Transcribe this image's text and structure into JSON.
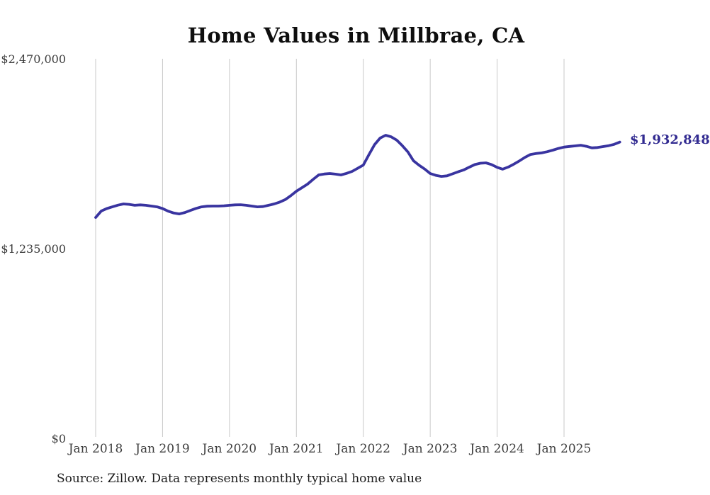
{
  "chart_data": {
    "type": "line",
    "title": "Home Values in Millbrae, CA",
    "source_note": "Source: Zillow. Data represents monthly typical home value",
    "end_label": "$1,932,848",
    "xlabel": "",
    "ylabel": "",
    "ylim": [
      0,
      2470000
    ],
    "grid": "vertical-only",
    "legend": "none",
    "y_ticks": [
      {
        "label": "$2,470,000",
        "value": 2470000
      },
      {
        "label": "$1,235,000",
        "value": 1235000
      },
      {
        "label": "$0",
        "value": 0
      }
    ],
    "x_ticks": [
      {
        "label": "Jan 2018",
        "month": 0
      },
      {
        "label": "Jan 2019",
        "month": 12
      },
      {
        "label": "Jan 2020",
        "month": 24
      },
      {
        "label": "Jan 2021",
        "month": 36
      },
      {
        "label": "Jan 2022",
        "month": 48
      },
      {
        "label": "Jan 2023",
        "month": 60
      },
      {
        "label": "Jan 2024",
        "month": 72
      },
      {
        "label": "Jan 2025",
        "month": 84
      }
    ],
    "series": {
      "name": "Monthly typical home value",
      "months": [
        "2018-01",
        "2018-02",
        "2018-03",
        "2018-04",
        "2018-05",
        "2018-06",
        "2018-07",
        "2018-08",
        "2018-09",
        "2018-10",
        "2018-11",
        "2018-12",
        "2019-01",
        "2019-02",
        "2019-03",
        "2019-04",
        "2019-05",
        "2019-06",
        "2019-07",
        "2019-08",
        "2019-09",
        "2019-10",
        "2019-11",
        "2019-12",
        "2020-01",
        "2020-02",
        "2020-03",
        "2020-04",
        "2020-05",
        "2020-06",
        "2020-07",
        "2020-08",
        "2020-09",
        "2020-10",
        "2020-11",
        "2020-12",
        "2021-01",
        "2021-02",
        "2021-03",
        "2021-04",
        "2021-05",
        "2021-06",
        "2021-07",
        "2021-08",
        "2021-09",
        "2021-10",
        "2021-11",
        "2021-12",
        "2022-01",
        "2022-02",
        "2022-03",
        "2022-04",
        "2022-05",
        "2022-06",
        "2022-07",
        "2022-08",
        "2022-09",
        "2022-10",
        "2022-11",
        "2022-12",
        "2023-01",
        "2023-02",
        "2023-03",
        "2023-04",
        "2023-05",
        "2023-06",
        "2023-07",
        "2023-08",
        "2023-09",
        "2023-10",
        "2023-11",
        "2023-12",
        "2024-01",
        "2024-02",
        "2024-03",
        "2024-04",
        "2024-05",
        "2024-06",
        "2024-07",
        "2024-08",
        "2024-09",
        "2024-10",
        "2024-11",
        "2024-12",
        "2025-01",
        "2025-02",
        "2025-03",
        "2025-04",
        "2025-05",
        "2025-06",
        "2025-07",
        "2025-08",
        "2025-09",
        "2025-10",
        "2025-11"
      ],
      "values": [
        1442000,
        1484000,
        1500000,
        1511000,
        1522000,
        1530000,
        1527000,
        1521000,
        1524000,
        1521000,
        1516000,
        1511000,
        1500000,
        1483000,
        1471000,
        1465000,
        1474000,
        1488000,
        1501000,
        1511000,
        1515000,
        1516000,
        1516000,
        1518000,
        1521000,
        1524000,
        1525000,
        1521000,
        1516000,
        1511000,
        1513000,
        1521000,
        1530000,
        1542000,
        1558000,
        1584000,
        1613000,
        1636000,
        1659000,
        1690000,
        1719000,
        1725000,
        1728000,
        1724000,
        1719000,
        1729000,
        1742000,
        1762000,
        1783000,
        1850000,
        1915000,
        1958000,
        1977000,
        1967000,
        1945000,
        1909000,
        1868000,
        1811000,
        1782000,
        1757000,
        1728000,
        1716000,
        1709000,
        1713000,
        1726000,
        1739000,
        1751000,
        1769000,
        1786000,
        1795000,
        1797000,
        1786000,
        1768000,
        1756000,
        1770000,
        1789000,
        1810000,
        1833000,
        1852000,
        1858000,
        1862000,
        1870000,
        1880000,
        1891000,
        1900000,
        1904000,
        1908000,
        1912000,
        1905000,
        1895000,
        1897000,
        1903000,
        1909000,
        1918000,
        1932848
      ]
    },
    "colors": {
      "line": "#3934a0",
      "end_label": "#322b91",
      "gridline": "#c9c9c9",
      "axis_text": "#3d3d3d",
      "title_text": "#0e0e0e",
      "source_text": "#1c1c1c"
    }
  }
}
